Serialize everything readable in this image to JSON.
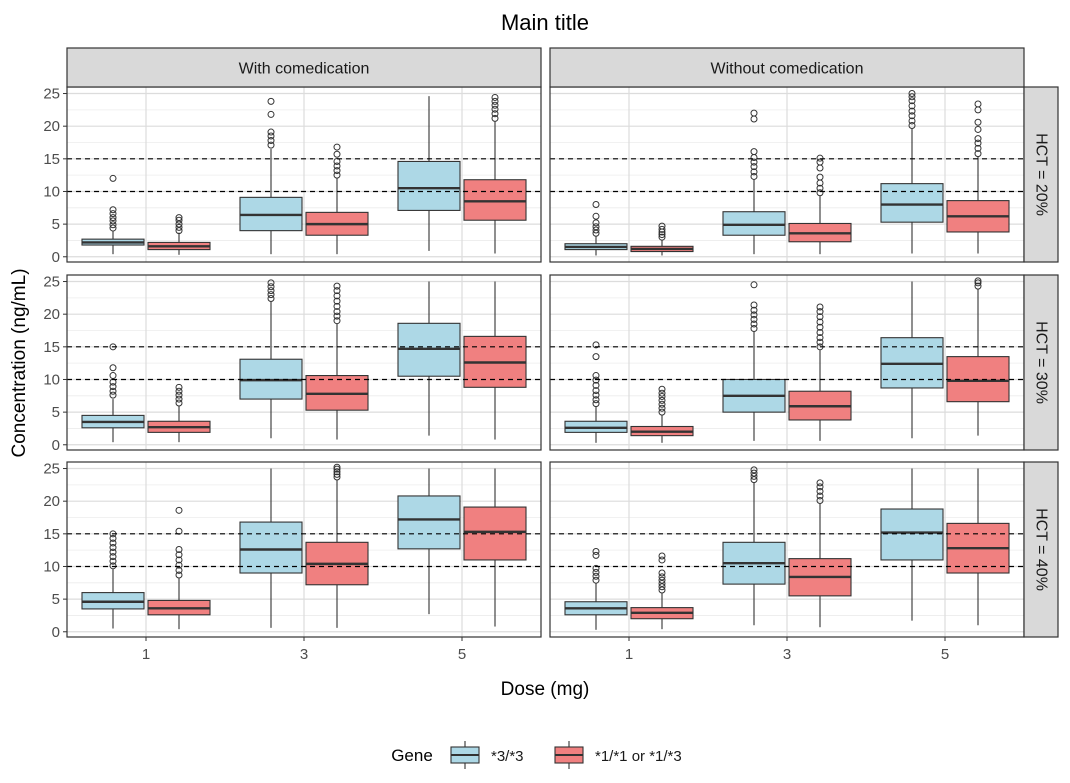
{
  "chart_data": {
    "type": "box",
    "title": "Main title",
    "xlabel": "Dose (mg)",
    "ylabel": "Concentration (ng/mL)",
    "x_categories": [
      "1",
      "3",
      "5"
    ],
    "ylim": [
      -0.8,
      26
    ],
    "y_ticks": [
      0,
      5,
      10,
      15,
      20,
      25
    ],
    "reference_lines": [
      10,
      15
    ],
    "column_facets": [
      "With comedication",
      "Without comedication"
    ],
    "row_facets": [
      "HCT = 20%",
      "HCT = 30%",
      "HCT = 40%"
    ],
    "grid": true,
    "legend": {
      "title": "Gene",
      "position": "bottom",
      "entries": [
        {
          "label": "*3/*3",
          "color": "#add8e6"
        },
        {
          "label": "*1/*1 or *1/*3",
          "color": "#f08080"
        }
      ]
    },
    "boxes": [
      {
        "col": 0,
        "row": 0,
        "dose": "1",
        "gene": "*3/*3",
        "whisker_low": 0.4,
        "q1": 1.8,
        "median": 2.2,
        "q3": 2.7,
        "whisker_high": 4.0,
        "outliers": [
          4.4,
          4.9,
          5.5,
          6.0,
          6.6,
          7.2,
          12.0
        ]
      },
      {
        "col": 0,
        "row": 0,
        "dose": "1",
        "gene": "*1/*1 or *1/*3",
        "whisker_low": 0.3,
        "q1": 1.1,
        "median": 1.6,
        "q3": 2.2,
        "whisker_high": 3.7,
        "outliers": [
          4.0,
          4.5,
          5.0,
          5.6,
          6.0
        ]
      },
      {
        "col": 0,
        "row": 0,
        "dose": "3",
        "gene": "*3/*3",
        "whisker_low": 0.4,
        "q1": 4.0,
        "median": 6.4,
        "q3": 9.1,
        "whisker_high": 16.5,
        "outliers": [
          17.1,
          17.8,
          18.5,
          19.1,
          21.8,
          23.8
        ]
      },
      {
        "col": 0,
        "row": 0,
        "dose": "3",
        "gene": "*1/*1 or *1/*3",
        "whisker_low": 0.4,
        "q1": 3.3,
        "median": 5.0,
        "q3": 6.8,
        "whisker_high": 12.0,
        "outliers": [
          12.5,
          13.2,
          13.9,
          14.6,
          15.7,
          16.8
        ]
      },
      {
        "col": 0,
        "row": 0,
        "dose": "5",
        "gene": "*3/*3",
        "whisker_low": 0.9,
        "q1": 7.1,
        "median": 10.5,
        "q3": 14.6,
        "whisker_high": 24.6,
        "outliers": []
      },
      {
        "col": 0,
        "row": 0,
        "dose": "5",
        "gene": "*1/*1 or *1/*3",
        "whisker_low": 0.5,
        "q1": 5.6,
        "median": 8.5,
        "q3": 11.8,
        "whisker_high": 20.7,
        "outliers": [
          21.2,
          21.9,
          22.6,
          23.2,
          23.8,
          24.4
        ]
      },
      {
        "col": 1,
        "row": 0,
        "dose": "1",
        "gene": "*3/*3",
        "whisker_low": 0.2,
        "q1": 1.1,
        "median": 1.5,
        "q3": 2.0,
        "whisker_high": 3.2,
        "outliers": [
          3.6,
          4.1,
          4.6,
          5.2,
          6.2,
          8.0
        ]
      },
      {
        "col": 1,
        "row": 0,
        "dose": "1",
        "gene": "*1/*1 or *1/*3",
        "whisker_low": 0.2,
        "q1": 0.8,
        "median": 1.2,
        "q3": 1.6,
        "whisker_high": 2.6,
        "outliers": [
          3.0,
          3.4,
          3.8,
          4.2,
          4.7
        ]
      },
      {
        "col": 1,
        "row": 0,
        "dose": "3",
        "gene": "*3/*3",
        "whisker_low": 0.4,
        "q1": 3.3,
        "median": 4.9,
        "q3": 6.9,
        "whisker_high": 11.8,
        "outliers": [
          12.3,
          13.0,
          13.8,
          14.5,
          15.2,
          16.1,
          21.1,
          22.0
        ]
      },
      {
        "col": 1,
        "row": 0,
        "dose": "3",
        "gene": "*1/*1 or *1/*3",
        "whisker_low": 0.4,
        "q1": 2.3,
        "median": 3.6,
        "q3": 5.1,
        "whisker_high": 9.3,
        "outliers": [
          9.8,
          10.5,
          11.3,
          12.2,
          13.6,
          14.5,
          15.1
        ]
      },
      {
        "col": 1,
        "row": 0,
        "dose": "5",
        "gene": "*3/*3",
        "whisker_low": 0.5,
        "q1": 5.3,
        "median": 8.0,
        "q3": 11.2,
        "whisker_high": 19.6,
        "outliers": [
          20.1,
          20.8,
          21.6,
          22.3,
          23.1,
          23.9,
          24.5,
          25.0
        ]
      },
      {
        "col": 1,
        "row": 0,
        "dose": "5",
        "gene": "*1/*1 or *1/*3",
        "whisker_low": 0.5,
        "q1": 3.8,
        "median": 6.2,
        "q3": 8.6,
        "whisker_high": 15.3,
        "outliers": [
          15.8,
          16.6,
          17.4,
          18.1,
          19.5,
          20.6,
          22.5,
          23.4
        ]
      },
      {
        "col": 0,
        "row": 1,
        "dose": "1",
        "gene": "*3/*3",
        "whisker_low": 0.4,
        "q1": 2.6,
        "median": 3.5,
        "q3": 4.5,
        "whisker_high": 7.0,
        "outliers": [
          7.6,
          8.2,
          8.9,
          9.6,
          10.6,
          11.8,
          15.0
        ]
      },
      {
        "col": 0,
        "row": 1,
        "dose": "1",
        "gene": "*1/*1 or *1/*3",
        "whisker_low": 0.4,
        "q1": 1.9,
        "median": 2.7,
        "q3": 3.6,
        "whisker_high": 6.0,
        "outliers": [
          6.4,
          7.0,
          7.6,
          8.2,
          8.8
        ]
      },
      {
        "col": 0,
        "row": 1,
        "dose": "3",
        "gene": "*3/*3",
        "whisker_low": 1.0,
        "q1": 7.0,
        "median": 9.9,
        "q3": 13.1,
        "whisker_high": 21.9,
        "outliers": [
          22.4,
          23.0,
          23.6,
          24.2,
          24.8
        ]
      },
      {
        "col": 0,
        "row": 1,
        "dose": "3",
        "gene": "*1/*1 or *1/*3",
        "whisker_low": 0.8,
        "q1": 5.3,
        "median": 7.8,
        "q3": 10.6,
        "whisker_high": 18.5,
        "outliers": [
          19.0,
          19.7,
          20.4,
          21.2,
          22.0,
          22.8,
          23.6,
          24.3
        ]
      },
      {
        "col": 0,
        "row": 1,
        "dose": "5",
        "gene": "*3/*3",
        "whisker_low": 1.4,
        "q1": 10.5,
        "median": 14.7,
        "q3": 18.6,
        "whisker_high": 25.0,
        "outliers": []
      },
      {
        "col": 0,
        "row": 1,
        "dose": "5",
        "gene": "*1/*1 or *1/*3",
        "whisker_low": 0.8,
        "q1": 8.8,
        "median": 12.6,
        "q3": 16.6,
        "whisker_high": 25.0,
        "outliers": []
      },
      {
        "col": 1,
        "row": 1,
        "dose": "1",
        "gene": "*3/*3",
        "whisker_low": 0.3,
        "q1": 1.9,
        "median": 2.6,
        "q3": 3.6,
        "whisker_high": 5.8,
        "outliers": [
          6.3,
          6.9,
          7.6,
          8.3,
          9.1,
          9.9,
          10.6,
          13.5,
          15.3
        ]
      },
      {
        "col": 1,
        "row": 1,
        "dose": "1",
        "gene": "*1/*1 or *1/*3",
        "whisker_low": 0.3,
        "q1": 1.4,
        "median": 2.0,
        "q3": 2.8,
        "whisker_high": 4.6,
        "outliers": [
          5.0,
          5.6,
          6.2,
          6.8,
          7.4,
          7.9,
          8.5
        ]
      },
      {
        "col": 1,
        "row": 1,
        "dose": "3",
        "gene": "*3/*3",
        "whisker_low": 0.6,
        "q1": 5.0,
        "median": 7.5,
        "q3": 10.0,
        "whisker_high": 17.3,
        "outliers": [
          17.8,
          18.5,
          19.2,
          19.9,
          20.6,
          21.4,
          24.5
        ]
      },
      {
        "col": 1,
        "row": 1,
        "dose": "3",
        "gene": "*1/*1 or *1/*3",
        "whisker_low": 0.6,
        "q1": 3.8,
        "median": 5.9,
        "q3": 8.2,
        "whisker_high": 14.5,
        "outliers": [
          15.0,
          15.7,
          16.4,
          17.2,
          18.0,
          18.8,
          19.6,
          20.4,
          21.1
        ]
      },
      {
        "col": 1,
        "row": 1,
        "dose": "5",
        "gene": "*3/*3",
        "whisker_low": 1.0,
        "q1": 8.7,
        "median": 12.4,
        "q3": 16.4,
        "whisker_high": 25.0,
        "outliers": []
      },
      {
        "col": 1,
        "row": 1,
        "dose": "5",
        "gene": "*1/*1 or *1/*3",
        "whisker_low": 1.4,
        "q1": 6.6,
        "median": 9.8,
        "q3": 13.5,
        "whisker_high": 23.8,
        "outliers": [
          24.3,
          24.8,
          25.1
        ]
      },
      {
        "col": 0,
        "row": 2,
        "dose": "1",
        "gene": "*3/*3",
        "whisker_low": 0.5,
        "q1": 3.5,
        "median": 4.6,
        "q3": 6.0,
        "whisker_high": 9.6,
        "outliers": [
          10.1,
          10.8,
          11.5,
          12.2,
          12.9,
          13.6,
          14.3,
          15.0
        ]
      },
      {
        "col": 0,
        "row": 2,
        "dose": "1",
        "gene": "*1/*1 or *1/*3",
        "whisker_low": 0.4,
        "q1": 2.6,
        "median": 3.6,
        "q3": 4.8,
        "whisker_high": 8.2,
        "outliers": [
          8.7,
          9.4,
          10.2,
          11.0,
          11.8,
          12.6,
          15.4,
          18.6
        ]
      },
      {
        "col": 0,
        "row": 2,
        "dose": "3",
        "gene": "*3/*3",
        "whisker_low": 0.6,
        "q1": 9.0,
        "median": 12.6,
        "q3": 16.8,
        "whisker_high": 25.0,
        "outliers": []
      },
      {
        "col": 0,
        "row": 2,
        "dose": "3",
        "gene": "*1/*1 or *1/*3",
        "whisker_low": 0.6,
        "q1": 7.2,
        "median": 10.4,
        "q3": 13.7,
        "whisker_high": 23.3,
        "outliers": [
          23.7,
          24.1,
          24.5,
          24.9,
          25.2
        ]
      },
      {
        "col": 0,
        "row": 2,
        "dose": "5",
        "gene": "*3/*3",
        "whisker_low": 2.7,
        "q1": 12.7,
        "median": 17.2,
        "q3": 20.8,
        "whisker_high": 25.0,
        "outliers": []
      },
      {
        "col": 0,
        "row": 2,
        "dose": "5",
        "gene": "*1/*1 or *1/*3",
        "whisker_low": 0.8,
        "q1": 11.0,
        "median": 15.3,
        "q3": 19.1,
        "whisker_high": 25.0,
        "outliers": []
      },
      {
        "col": 1,
        "row": 2,
        "dose": "1",
        "gene": "*3/*3",
        "whisker_low": 0.3,
        "q1": 2.6,
        "median": 3.6,
        "q3": 4.6,
        "whisker_high": 7.4,
        "outliers": [
          7.9,
          8.5,
          9.1,
          9.7,
          11.7,
          12.3
        ]
      },
      {
        "col": 1,
        "row": 2,
        "dose": "1",
        "gene": "*1/*1 or *1/*3",
        "whisker_low": 0.4,
        "q1": 2.0,
        "median": 2.9,
        "q3": 3.7,
        "whisker_high": 6.0,
        "outliers": [
          6.4,
          6.9,
          7.4,
          7.9,
          8.4,
          9.0,
          11.0,
          11.6
        ]
      },
      {
        "col": 1,
        "row": 2,
        "dose": "3",
        "gene": "*3/*3",
        "whisker_low": 1.0,
        "q1": 7.3,
        "median": 10.5,
        "q3": 13.7,
        "whisker_high": 22.8,
        "outliers": [
          23.3,
          23.8,
          24.3,
          24.8
        ]
      },
      {
        "col": 1,
        "row": 2,
        "dose": "3",
        "gene": "*1/*1 or *1/*3",
        "whisker_low": 0.7,
        "q1": 5.5,
        "median": 8.4,
        "q3": 11.2,
        "whisker_high": 19.6,
        "outliers": [
          20.1,
          20.8,
          21.5,
          22.2,
          22.8
        ]
      },
      {
        "col": 1,
        "row": 2,
        "dose": "5",
        "gene": "*3/*3",
        "whisker_low": 1.7,
        "q1": 11.0,
        "median": 15.2,
        "q3": 18.8,
        "whisker_high": 25.0,
        "outliers": []
      },
      {
        "col": 1,
        "row": 2,
        "dose": "5",
        "gene": "*1/*1 or *1/*3",
        "whisker_low": 1.0,
        "q1": 9.0,
        "median": 12.8,
        "q3": 16.6,
        "whisker_high": 25.0,
        "outliers": []
      }
    ]
  }
}
